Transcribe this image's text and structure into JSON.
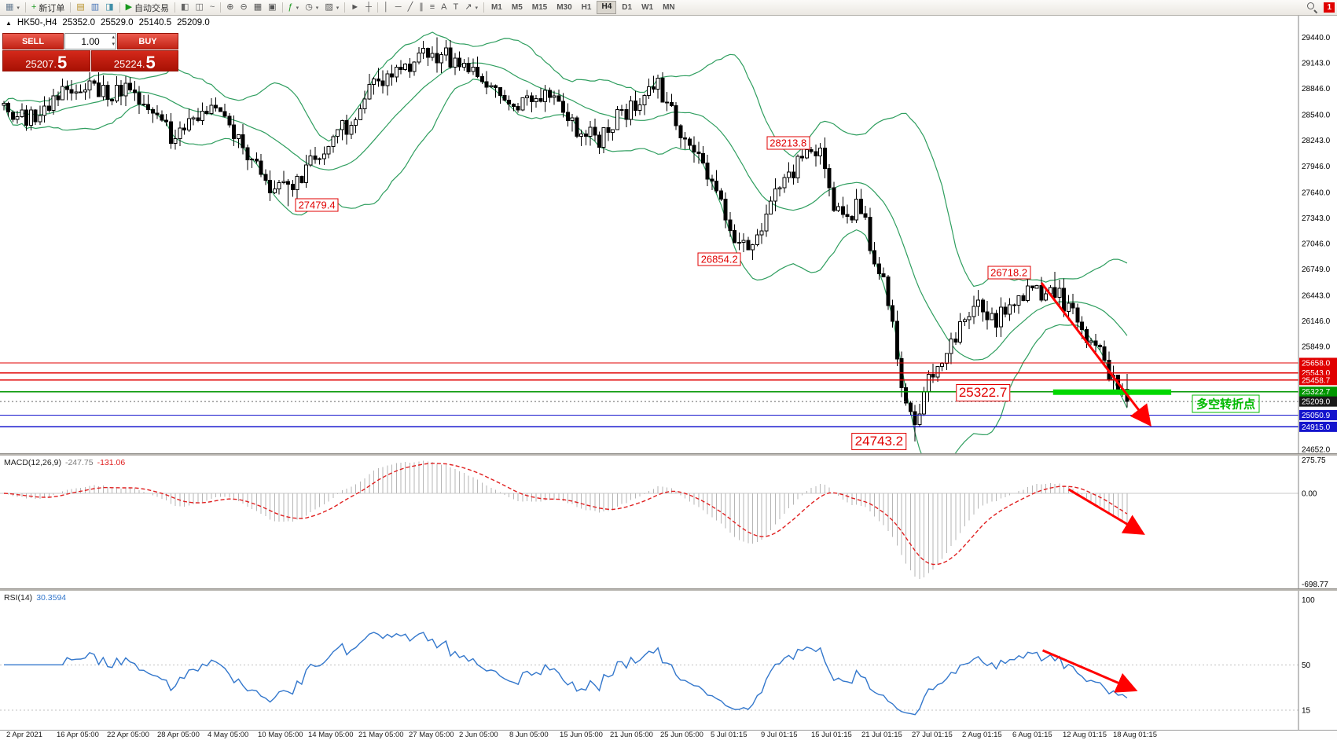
{
  "app": {
    "badge_count": "1"
  },
  "toolbar": {
    "caret_glyph": "▾",
    "groups": [
      {
        "items": [
          {
            "name": "new-chart-button",
            "glyph": "▦",
            "color": "#6b7f95",
            "caret": true
          }
        ]
      },
      {
        "items": [
          {
            "name": "new-order-button",
            "glyph": "+",
            "color": "#18981d",
            "label": "新订单"
          }
        ]
      },
      {
        "items": [
          {
            "name": "market-watch-button",
            "glyph": "▤",
            "color": "#b8922a"
          },
          {
            "name": "data-window-button",
            "glyph": "▥",
            "color": "#4a76b8"
          },
          {
            "name": "navigator-button",
            "glyph": "◨",
            "color": "#3f8ea8"
          }
        ]
      },
      {
        "items": [
          {
            "name": "autotrading-button",
            "glyph": "▶",
            "color": "#18981d",
            "label": "自动交易"
          }
        ]
      },
      {
        "items": [
          {
            "name": "bar-chart-button",
            "glyph": "◧",
            "color": "#666666"
          },
          {
            "name": "candlestick-chart-button",
            "glyph": "◫",
            "color": "#666666"
          },
          {
            "name": "line-chart-button",
            "glyph": "~",
            "color": "#666666"
          }
        ]
      },
      {
        "items": [
          {
            "name": "zoom-in-button",
            "glyph": "⊕",
            "color": "#555555"
          },
          {
            "name": "zoom-out-button",
            "glyph": "⊖",
            "color": "#555555"
          },
          {
            "name": "tile-windows-button",
            "glyph": "▦",
            "color": "#555555"
          },
          {
            "name": "cascade-windows-button",
            "glyph": "▣",
            "color": "#555555"
          }
        ]
      },
      {
        "items": [
          {
            "name": "indicators-button",
            "glyph": "ƒ",
            "color": "#18981d",
            "caret": true
          },
          {
            "name": "periods-button",
            "glyph": "◷",
            "color": "#555555",
            "caret": true
          },
          {
            "name": "templates-button",
            "glyph": "▨",
            "color": "#555555",
            "caret": true
          }
        ]
      },
      {
        "items": [
          {
            "name": "cursor-button",
            "glyph": "►",
            "color": "#555555"
          },
          {
            "name": "crosshair-button",
            "glyph": "┼",
            "color": "#555555"
          }
        ]
      },
      {
        "items": [
          {
            "name": "vertical-line-button",
            "glyph": "│",
            "color": "#555555"
          },
          {
            "name": "horizontal-line-button",
            "glyph": "─",
            "color": "#555555"
          },
          {
            "name": "trendline-button",
            "glyph": "╱",
            "color": "#555555"
          },
          {
            "name": "channel-button",
            "glyph": "∥",
            "color": "#555555"
          },
          {
            "name": "fibonacci-button",
            "glyph": "≡",
            "color": "#555555"
          },
          {
            "name": "text-button",
            "glyph": "A",
            "color": "#555555"
          },
          {
            "name": "label-button",
            "glyph": "T",
            "color": "#555555"
          },
          {
            "name": "arrows-tool-button",
            "glyph": "↗",
            "color": "#555555",
            "caret": true
          }
        ]
      }
    ],
    "timeframes": [
      {
        "label": "M1",
        "active": false
      },
      {
        "label": "M5",
        "active": false
      },
      {
        "label": "M15",
        "active": false
      },
      {
        "label": "M30",
        "active": false
      },
      {
        "label": "H1",
        "active": false
      },
      {
        "label": "H4",
        "active": true
      },
      {
        "label": "D1",
        "active": false
      },
      {
        "label": "W1",
        "active": false
      },
      {
        "label": "MN",
        "active": false
      }
    ]
  },
  "chart": {
    "header": {
      "collapse_icon": "▲",
      "symbol_period": "HK50-,H4",
      "open": "25352.0",
      "high": "25529.0",
      "low": "25140.5",
      "close": "25209.0"
    },
    "trade_panel": {
      "sell_label": "SELL",
      "buy_label": "BUY",
      "volume": "1.00",
      "spin_up": "▴",
      "spin_down": "▾",
      "sell_price": "25207.",
      "sell_big": "5",
      "buy_price": "25224.",
      "buy_big": "5"
    }
  },
  "chart_data": {
    "type": "candlestick",
    "symbol": "HK50-",
    "timeframe": "H4",
    "candle_count": 250,
    "candles_end_xf": 0.868,
    "seed": 1234567,
    "volatility": 170,
    "last_candle": {
      "open": 25352.0,
      "high": 25529.0,
      "low": 25140.5,
      "close": 25209.0
    },
    "price_path": [
      [
        0.0,
        28650
      ],
      [
        0.02,
        28450
      ],
      [
        0.05,
        28780
      ],
      [
        0.07,
        28900
      ],
      [
        0.09,
        28800
      ],
      [
        0.11,
        28870
      ],
      [
        0.13,
        28600
      ],
      [
        0.15,
        28250
      ],
      [
        0.17,
        28500
      ],
      [
        0.19,
        28620
      ],
      [
        0.21,
        28200
      ],
      [
        0.23,
        27800
      ],
      [
        0.255,
        27600
      ],
      [
        0.27,
        27950
      ],
      [
        0.29,
        28200
      ],
      [
        0.31,
        28500
      ],
      [
        0.33,
        28900
      ],
      [
        0.36,
        29150
      ],
      [
        0.386,
        29250
      ],
      [
        0.41,
        29100
      ],
      [
        0.43,
        28850
      ],
      [
        0.45,
        28600
      ],
      [
        0.47,
        28700
      ],
      [
        0.49,
        28850
      ],
      [
        0.51,
        28350
      ],
      [
        0.53,
        28250
      ],
      [
        0.55,
        28550
      ],
      [
        0.57,
        28800
      ],
      [
        0.582,
        28880
      ],
      [
        0.6,
        28450
      ],
      [
        0.62,
        27950
      ],
      [
        0.64,
        27450
      ],
      [
        0.655,
        27050
      ],
      [
        0.666,
        26980
      ],
      [
        0.68,
        27450
      ],
      [
        0.7,
        27850
      ],
      [
        0.715,
        28050
      ],
      [
        0.726,
        28080
      ],
      [
        0.74,
        27450
      ],
      [
        0.75,
        27250
      ],
      [
        0.76,
        27600
      ],
      [
        0.77,
        27100
      ],
      [
        0.78,
        26700
      ],
      [
        0.79,
        26200
      ],
      [
        0.8,
        25400
      ],
      [
        0.813,
        25000
      ],
      [
        0.822,
        25450
      ],
      [
        0.83,
        25650
      ],
      [
        0.84,
        25850
      ],
      [
        0.85,
        26000
      ],
      [
        0.86,
        26200
      ],
      [
        0.87,
        26300
      ],
      [
        0.88,
        26150
      ],
      [
        0.89,
        26250
      ],
      [
        0.9,
        26400
      ],
      [
        0.91,
        26500
      ],
      [
        0.92,
        26450
      ],
      [
        0.934,
        26550
      ],
      [
        0.945,
        26350
      ],
      [
        0.955,
        26150
      ],
      [
        0.965,
        25950
      ],
      [
        0.975,
        25750
      ],
      [
        0.985,
        25550
      ],
      [
        1.0,
        25280
      ]
    ],
    "anchors": [
      {
        "t": 0.255,
        "type": "low",
        "value": 27479.4
      },
      {
        "t": 0.386,
        "type": "high",
        "value": 29440.0
      },
      {
        "t": 0.666,
        "type": "low",
        "value": 26854.2
      },
      {
        "t": 0.726,
        "type": "high",
        "value": 28213.8
      },
      {
        "t": 0.813,
        "type": "low",
        "value": 24743.2
      },
      {
        "t": 0.934,
        "type": "high",
        "value": 26718.2
      }
    ],
    "bollinger": {
      "period": 20,
      "deviation": 2,
      "color": "#2f9e5f"
    },
    "y_axis": {
      "range": [
        24608,
        29701
      ],
      "ticks": [
        {
          "text": "29440.0",
          "v": 29440
        },
        {
          "text": "29143.0",
          "v": 29143
        },
        {
          "text": "28846.0",
          "v": 28846
        },
        {
          "text": "28540.0",
          "v": 28540
        },
        {
          "text": "28243.0",
          "v": 28243
        },
        {
          "text": "27946.0",
          "v": 27946
        },
        {
          "text": "27640.0",
          "v": 27640
        },
        {
          "text": "27343.0",
          "v": 27343
        },
        {
          "text": "27046.0",
          "v": 27046
        },
        {
          "text": "26749.0",
          "v": 26749
        },
        {
          "text": "26443.0",
          "v": 26443
        },
        {
          "text": "26146.0",
          "v": 26146
        },
        {
          "text": "25849.0",
          "v": 25849
        },
        {
          "text": "24652.0",
          "v": 24652
        }
      ],
      "highlights": [
        {
          "text": "25658.0",
          "v": 25658.0,
          "bg": "#e00000"
        },
        {
          "text": "25543.0",
          "v": 25543.0,
          "bg": "#e00000"
        },
        {
          "text": "25458.7",
          "v": 25458.7,
          "bg": "#e00000"
        },
        {
          "text": "25322.7",
          "v": 25322.7,
          "bg": "#009600"
        },
        {
          "text": "25209.0",
          "v": 25209.0,
          "bg": "#1a1a1a"
        },
        {
          "text": "25050.9",
          "v": 25050.9,
          "bg": "#1414cc"
        },
        {
          "text": "24915.0",
          "v": 24915.0,
          "bg": "#1414cc"
        }
      ]
    },
    "h_lines": [
      {
        "price": 25658.0,
        "color": "#e00000"
      },
      {
        "price": 25543.0,
        "color": "#e00000"
      },
      {
        "price": 25458.7,
        "color": "#e00000"
      },
      {
        "price": 25322.7,
        "color": "#009600"
      },
      {
        "price": 25050.9,
        "color": "#1414cc"
      },
      {
        "price": 24915.0,
        "color": "#1414cc"
      }
    ],
    "current_price_line": {
      "price": 25209.0,
      "label": "25209.0"
    },
    "annotations": [
      {
        "text": "27479.4",
        "xf": 0.244,
        "price": 27492,
        "size": "s"
      },
      {
        "text": "26854.2",
        "xf": 0.554,
        "price": 26862,
        "size": "s"
      },
      {
        "text": "28213.8",
        "xf": 0.607,
        "price": 28213,
        "size": "s"
      },
      {
        "text": "26718.2",
        "xf": 0.777,
        "price": 26707,
        "size": "s"
      },
      {
        "text": "25322.7",
        "xf": 0.757,
        "price": 25311,
        "size": "l"
      },
      {
        "text": "24743.2",
        "xf": 0.677,
        "price": 24745,
        "size": "l"
      }
    ],
    "green_zone": {
      "x1f": 0.811,
      "x2f": 0.902,
      "price": 25318,
      "color": "#00d800"
    },
    "note_text": {
      "text": "多空转折点",
      "xf": 0.944,
      "price": 25183,
      "color": "#00bb00"
    },
    "arrows": {
      "color": "#ff0000",
      "main": {
        "x1f": 0.802,
        "p1": 26588,
        "x2f": 0.884,
        "p2": 24973
      },
      "macd": {
        "x1f": 0.823,
        "y1f": 0.254,
        "x2f": 0.878,
        "y2f": 0.574
      },
      "rsi": {
        "x1f": 0.803,
        "y1f": 0.429,
        "x2f": 0.872,
        "y2f": 0.706
      }
    },
    "macd": {
      "title": "MACD(12,26,9)",
      "value_main": "-247.75",
      "value_signal": "-131.06",
      "axis": [
        {
          "text": "275.75",
          "v": 275.75
        },
        {
          "text": "0.00",
          "v": 0
        },
        {
          "text": "-698.77",
          "v": -698.77
        }
      ],
      "range": [
        -710,
        282
      ],
      "fit": 640,
      "hist_color": "#b6b6b6",
      "signal_color": "#e02020"
    },
    "rsi": {
      "title": "RSI(14)",
      "value": "30.3594",
      "axis": [
        {
          "text": "100",
          "v": 100
        },
        {
          "text": "50",
          "v": 50
        },
        {
          "text": "15",
          "v": 15
        }
      ],
      "levels": [
        50,
        15
      ],
      "range": [
        0,
        107
      ],
      "color": "#3377cc"
    },
    "x_axis_labels": [
      "2 Apr 2021",
      "16 Apr 05:00",
      "22 Apr 05:00",
      "28 Apr 05:00",
      "4 May 05:00",
      "10 May 05:00",
      "14 May 05:00",
      "21 May 05:00",
      "27 May 05:00",
      "2 Jun 05:00",
      "8 Jun 05:00",
      "15 Jun 05:00",
      "21 Jun 05:00",
      "25 Jun 05:00",
      "5 Jul 01:15",
      "9 Jul 01:15",
      "15 Jul 01:15",
      "21 Jul 01:15",
      "27 Jul 01:15",
      "2 Aug 01:15",
      "6 Aug 01:15",
      "12 Aug 01:15",
      "18 Aug 01:15"
    ]
  }
}
